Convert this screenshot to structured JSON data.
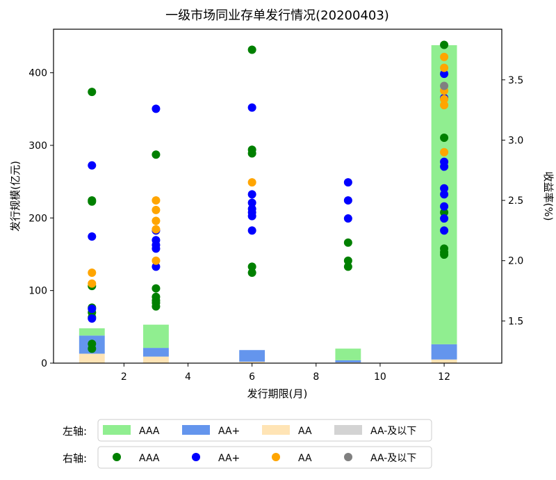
{
  "chart_data": {
    "type": "bar+scatter",
    "title": "一级市场同业存单发行情况(20200403)",
    "xlabel": "发行期限(月)",
    "ylabel_left": "发行规模(亿元)",
    "ylabel_right": "收益率(%)",
    "xlim": [
      -0.2,
      13.8
    ],
    "ylim_left": [
      0,
      460
    ],
    "ylim_right": [
      1.15,
      3.92
    ],
    "x_ticks": [
      2,
      4,
      6,
      8,
      10,
      12
    ],
    "y_left_ticks": [
      0,
      100,
      200,
      300,
      400
    ],
    "y_right_ticks": [
      1.5,
      2.0,
      2.5,
      3.0,
      3.5
    ],
    "grid": false,
    "bar_width": 0.8,
    "bar_series": [
      {
        "name": "AAA",
        "color": "#90EE90",
        "values": [
          [
            1,
            10
          ],
          [
            3,
            32
          ],
          [
            6,
            0
          ],
          [
            9,
            16
          ],
          [
            12,
            412
          ]
        ]
      },
      {
        "name": "AA+",
        "color": "#6495ED",
        "values": [
          [
            1,
            25
          ],
          [
            3,
            12
          ],
          [
            6,
            16
          ],
          [
            9,
            3
          ],
          [
            12,
            21
          ]
        ]
      },
      {
        "name": "AA",
        "color": "#FFE4B5",
        "values": [
          [
            1,
            13
          ],
          [
            3,
            9
          ],
          [
            6,
            2
          ],
          [
            9,
            1
          ],
          [
            12,
            5
          ]
        ]
      },
      {
        "name": "AA-及以下",
        "color": "#D3D3D3",
        "values": []
      }
    ],
    "scatter_series": [
      {
        "name": "AAA",
        "color": "#008000",
        "points": [
          [
            1,
            3.4
          ],
          [
            1,
            2.5
          ],
          [
            1,
            2.49
          ],
          [
            1,
            1.79
          ],
          [
            1,
            1.61
          ],
          [
            1,
            1.57
          ],
          [
            1,
            1.53
          ],
          [
            1,
            1.31
          ],
          [
            1,
            1.27
          ],
          [
            3,
            2.88
          ],
          [
            3,
            1.77
          ],
          [
            3,
            1.7
          ],
          [
            3,
            1.67
          ],
          [
            3,
            1.65
          ],
          [
            3,
            1.62
          ],
          [
            6,
            3.75
          ],
          [
            6,
            2.92
          ],
          [
            6,
            2.89
          ],
          [
            6,
            1.95
          ],
          [
            6,
            1.9
          ],
          [
            9,
            2.15
          ],
          [
            9,
            2.0
          ],
          [
            9,
            1.95
          ],
          [
            12,
            3.79
          ],
          [
            12,
            3.02
          ],
          [
            12,
            2.4
          ],
          [
            12,
            2.1
          ],
          [
            12,
            2.07
          ],
          [
            12,
            2.05
          ]
        ]
      },
      {
        "name": "AA+",
        "color": "#0000FF",
        "points": [
          [
            1,
            2.79
          ],
          [
            1,
            2.2
          ],
          [
            1,
            1.6
          ],
          [
            1,
            1.52
          ],
          [
            3,
            3.26
          ],
          [
            3,
            2.25
          ],
          [
            3,
            2.17
          ],
          [
            3,
            2.13
          ],
          [
            3,
            2.1
          ],
          [
            3,
            1.95
          ],
          [
            6,
            3.27
          ],
          [
            6,
            2.55
          ],
          [
            6,
            2.48
          ],
          [
            6,
            2.43
          ],
          [
            6,
            2.4
          ],
          [
            6,
            2.37
          ],
          [
            6,
            2.25
          ],
          [
            9,
            2.65
          ],
          [
            9,
            2.5
          ],
          [
            9,
            2.35
          ],
          [
            12,
            3.55
          ],
          [
            12,
            3.35
          ],
          [
            12,
            2.82
          ],
          [
            12,
            2.78
          ],
          [
            12,
            2.6
          ],
          [
            12,
            2.55
          ],
          [
            12,
            2.45
          ],
          [
            12,
            2.35
          ],
          [
            12,
            2.25
          ]
        ]
      },
      {
        "name": "AA",
        "color": "#FFA500",
        "points": [
          [
            1,
            1.9
          ],
          [
            1,
            1.81
          ],
          [
            3,
            2.5
          ],
          [
            3,
            2.42
          ],
          [
            3,
            2.33
          ],
          [
            3,
            2.26
          ],
          [
            3,
            2.0
          ],
          [
            6,
            2.65
          ],
          [
            12,
            3.69
          ],
          [
            12,
            3.6
          ],
          [
            12,
            3.41
          ],
          [
            12,
            3.34
          ],
          [
            12,
            3.29
          ],
          [
            12,
            2.9
          ]
        ]
      },
      {
        "name": "AA-及以下",
        "color": "#808080",
        "points": [
          [
            12,
            3.45
          ]
        ]
      }
    ],
    "legend": {
      "placement": "bottom",
      "left_label": "左轴:",
      "right_label": "右轴:"
    }
  }
}
